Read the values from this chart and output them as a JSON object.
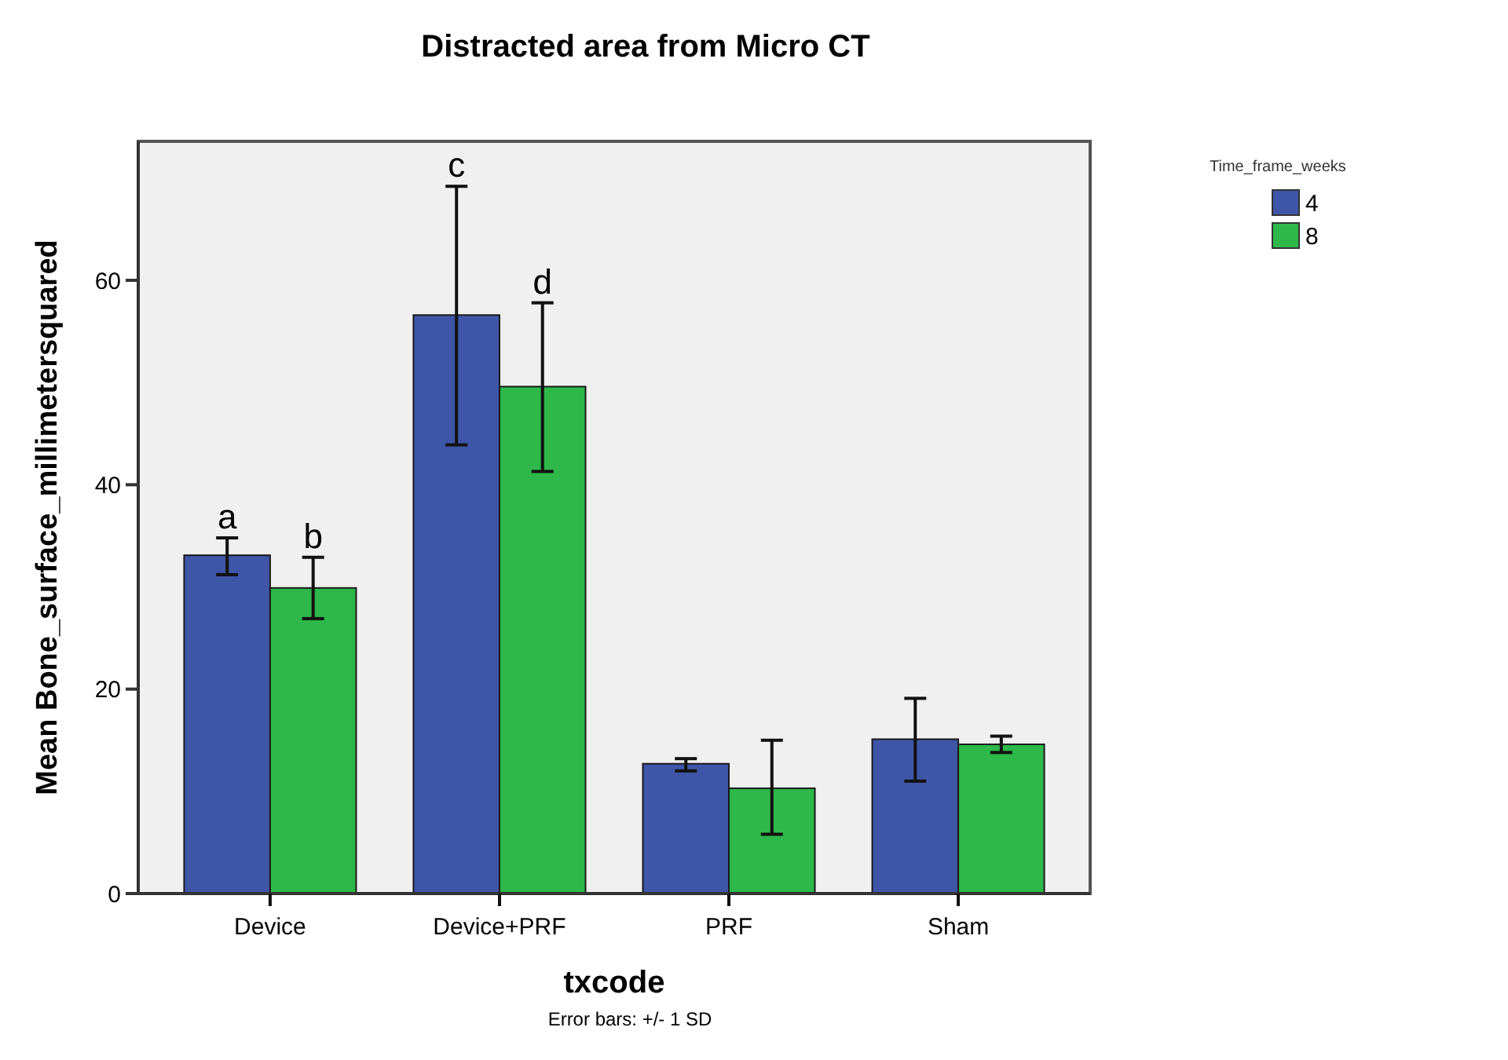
{
  "chart_data": {
    "type": "bar",
    "title": "Distracted area from Micro CT",
    "xlabel": "txcode",
    "ylabel": "Mean Bone_surface_millimetersquared",
    "legend_title": "Time_frame_weeks",
    "legend": "top right",
    "categories": [
      "Device",
      "Device+PRF",
      "PRF",
      "Sham"
    ],
    "series": [
      {
        "name": "4",
        "color": "#3f56a8",
        "values": [
          33.1,
          56.6,
          12.7,
          15.1
        ],
        "errors": [
          [
            31.2,
            34.8
          ],
          [
            43.9,
            69.2
          ],
          [
            12.0,
            13.2
          ],
          [
            11.0,
            19.1
          ]
        ]
      },
      {
        "name": "8",
        "color": "#2eb84a",
        "values": [
          29.9,
          49.6,
          10.3,
          14.6
        ],
        "errors": [
          [
            26.9,
            32.9
          ],
          [
            41.3,
            57.8
          ],
          [
            5.8,
            15.0
          ],
          [
            13.8,
            15.4
          ]
        ]
      }
    ],
    "ylim": [
      0,
      73.6
    ],
    "yticks": [
      0,
      20,
      40,
      60
    ],
    "grid": false,
    "annotations": [
      "a",
      "b",
      "c",
      "d",
      "Error bars: +/- 1 SD"
    ]
  }
}
